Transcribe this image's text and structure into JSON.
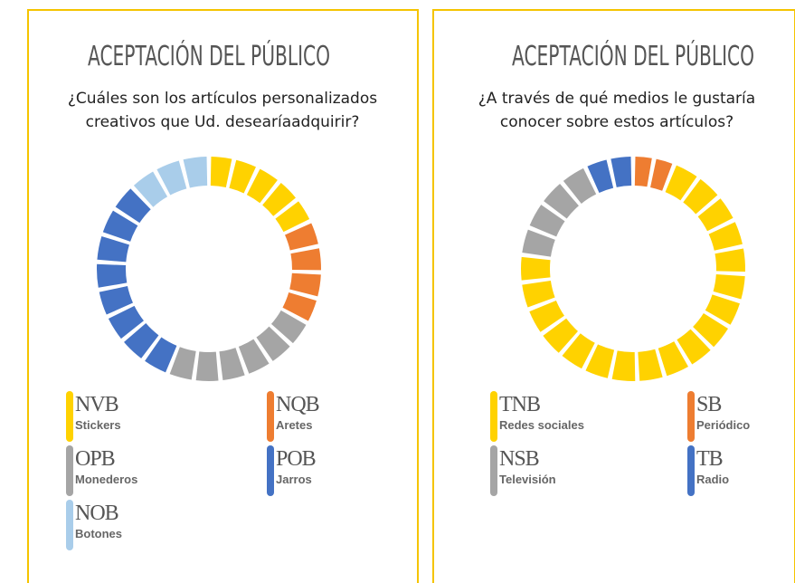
{
  "chart_data": [
    {
      "type": "pie",
      "title": "ACEPTACIÓN DEL PÚBLICO",
      "subtitle": [
        "¿Cuáles son los artículos personalizados",
        "creativos que Ud. desearíaadquirir?"
      ],
      "categories": [
        "Stickers",
        "Aretes",
        "Monederos",
        "Jarros",
        "Botones"
      ],
      "values": [
        18,
        15,
        23,
        32,
        12
      ],
      "legend_codes": [
        "NVB",
        "NQB",
        "OPB",
        "POB",
        "NOB"
      ],
      "colors": [
        "#ffd200",
        "#ee7d31",
        "#a5a5a5",
        "#4472c4",
        "#a9cdea"
      ]
    },
    {
      "type": "pie",
      "title": "ACEPTACIÓN DEL PÚBLICO",
      "subtitle": [
        "¿A través de qué medios le gustaría",
        "conocer sobre estos artículos?"
      ],
      "categories": [
        "Periódico",
        "Redes sociales",
        "Televisión",
        "Radio"
      ],
      "values": [
        6,
        71,
        16,
        7
      ],
      "legend_codes": [
        "SB",
        "TNB",
        "NSB",
        "TB"
      ],
      "colors": [
        "#ee7d31",
        "#ffd200",
        "#a5a5a5",
        "#4472c4"
      ]
    }
  ]
}
